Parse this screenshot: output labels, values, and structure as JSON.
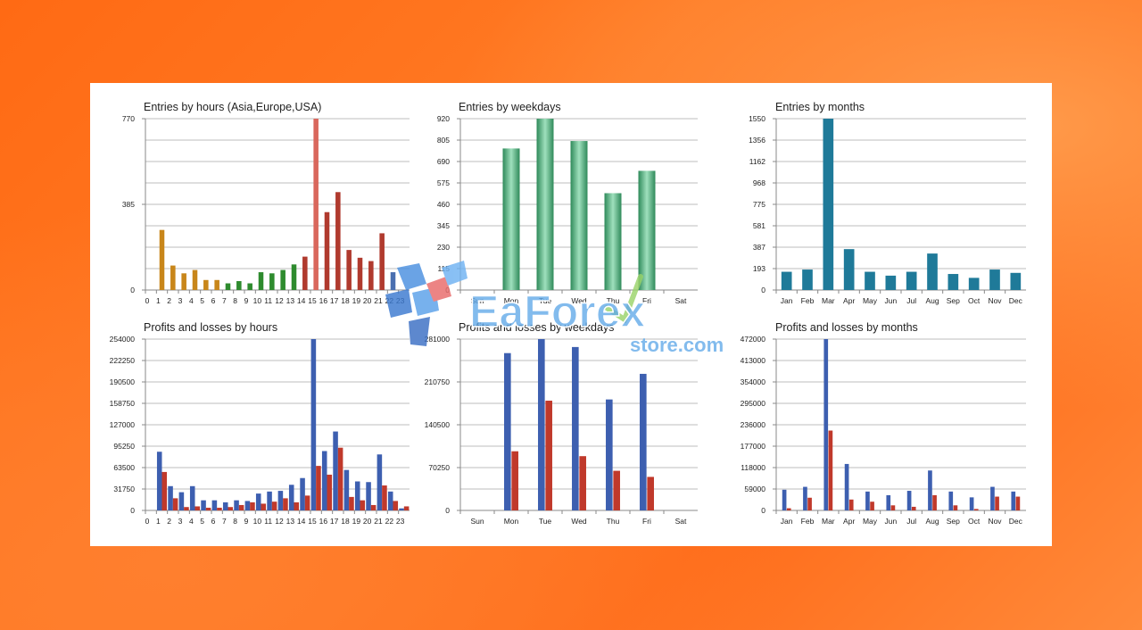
{
  "watermark": {
    "brand": "EaForex",
    "sub": "store.com"
  },
  "chart_data": [
    {
      "id": "c1",
      "type": "bar",
      "title": "Entries by hours (Asia,Europe,USA)",
      "categories": [
        "0",
        "1",
        "2",
        "3",
        "4",
        "5",
        "6",
        "7",
        "8",
        "9",
        "10",
        "11",
        "12",
        "13",
        "14",
        "15",
        "16",
        "17",
        "18",
        "19",
        "20",
        "21",
        "22",
        "23"
      ],
      "yticks": [
        "0",
        "385",
        "770"
      ],
      "ylim": [
        0,
        770
      ],
      "series": [
        {
          "values": [
            0,
            270,
            110,
            75,
            90,
            45,
            45,
            30,
            40,
            30,
            80,
            75,
            90,
            115,
            150,
            770,
            350,
            440,
            180,
            145,
            130,
            255,
            80,
            0
          ]
        }
      ],
      "bar_colors": [
        "#c8861a",
        "#c8861a",
        "#c8861a",
        "#c8861a",
        "#c8861a",
        "#c8861a",
        "#c8861a",
        "#2e8b2e",
        "#2e8b2e",
        "#2e8b2e",
        "#2e8b2e",
        "#2e8b2e",
        "#2e8b2e",
        "#2e8b2e",
        "#b03a2e",
        "#d9675c",
        "#b03a2e",
        "#b03a2e",
        "#b03a2e",
        "#b03a2e",
        "#b03a2e",
        "#b03a2e",
        "#4a6fb0",
        "#b03a2e"
      ]
    },
    {
      "id": "c2",
      "type": "bar",
      "title": "Entries by weekdays",
      "categories": [
        "Sun",
        "Mon",
        "Tue",
        "Wed",
        "Thu",
        "Fri",
        "Sat"
      ],
      "yticks": [
        "0",
        "115",
        "230",
        "345",
        "460",
        "575",
        "690",
        "805",
        "920"
      ],
      "ylim": [
        0,
        920
      ],
      "series": [
        {
          "values": [
            0,
            760,
            920,
            800,
            520,
            640,
            0
          ]
        }
      ],
      "bar_color": "#3a9a6e"
    },
    {
      "id": "c3",
      "type": "bar",
      "title": "Entries by months",
      "categories": [
        "Jan",
        "Feb",
        "Mar",
        "Apr",
        "May",
        "Jun",
        "Jul",
        "Aug",
        "Sep",
        "Oct",
        "Nov",
        "Dec"
      ],
      "yticks": [
        "0",
        "193",
        "387",
        "581",
        "775",
        "968",
        "1162",
        "1356",
        "1550"
      ],
      "ylim": [
        0,
        1550
      ],
      "series": [
        {
          "values": [
            165,
            185,
            1550,
            370,
            165,
            130,
            165,
            330,
            145,
            110,
            185,
            155
          ]
        }
      ],
      "bar_color": "#1f7a99"
    },
    {
      "id": "c4",
      "type": "bar",
      "title": "Profits and losses by hours",
      "categories": [
        "0",
        "1",
        "2",
        "3",
        "4",
        "5",
        "6",
        "7",
        "8",
        "9",
        "10",
        "11",
        "12",
        "13",
        "14",
        "15",
        "16",
        "17",
        "18",
        "19",
        "20",
        "21",
        "22",
        "23"
      ],
      "yticks": [
        "0",
        "31750",
        "63500",
        "95250",
        "127000",
        "158750",
        "190500",
        "222250",
        "254000"
      ],
      "ylim": [
        0,
        254000
      ],
      "series": [
        {
          "values": [
            0,
            87000,
            36000,
            27000,
            36000,
            15000,
            15000,
            12000,
            15000,
            14000,
            25000,
            28000,
            29000,
            38000,
            48000,
            254000,
            88000,
            117000,
            60000,
            43000,
            42000,
            83000,
            28000,
            3000
          ]
        },
        {
          "values": [
            0,
            57000,
            18000,
            5000,
            6000,
            4000,
            4000,
            5000,
            8000,
            12000,
            10000,
            13000,
            18000,
            12000,
            22000,
            66000,
            53000,
            93000,
            20000,
            15000,
            8000,
            37000,
            14000,
            6000
          ]
        }
      ],
      "series_colors": [
        "#3d5fb0",
        "#c0392b"
      ]
    },
    {
      "id": "c5",
      "type": "bar",
      "title": "Profits and losses by weekdays",
      "categories": [
        "Sun",
        "Mon",
        "Tue",
        "Wed",
        "Thu",
        "Fri",
        "Sat"
      ],
      "yticks": [
        "0",
        "70250",
        "140500",
        "210750",
        "281000"
      ],
      "ylim": [
        0,
        281000
      ],
      "series": [
        {
          "values": [
            0,
            258000,
            281000,
            268000,
            182000,
            224000,
            0
          ]
        },
        {
          "values": [
            0,
            97000,
            180000,
            89000,
            65000,
            55000,
            0
          ]
        }
      ],
      "series_colors": [
        "#3d5fb0",
        "#c0392b"
      ]
    },
    {
      "id": "c6",
      "type": "bar",
      "title": "Profits and losses by months",
      "categories": [
        "Jan",
        "Feb",
        "Mar",
        "Apr",
        "May",
        "Jun",
        "Jul",
        "Aug",
        "Sep",
        "Oct",
        "Nov",
        "Dec"
      ],
      "yticks": [
        "0",
        "59000",
        "118000",
        "177000",
        "236000",
        "295000",
        "354000",
        "413000",
        "472000"
      ],
      "ylim": [
        0,
        472000
      ],
      "series": [
        {
          "values": [
            57000,
            65000,
            472000,
            128000,
            52000,
            42000,
            54000,
            110000,
            52000,
            36000,
            65000,
            52000
          ]
        },
        {
          "values": [
            6000,
            35000,
            220000,
            30000,
            24000,
            14000,
            10000,
            42000,
            14000,
            4000,
            38000,
            38000
          ]
        }
      ],
      "series_colors": [
        "#3d5fb0",
        "#c0392b"
      ]
    }
  ]
}
